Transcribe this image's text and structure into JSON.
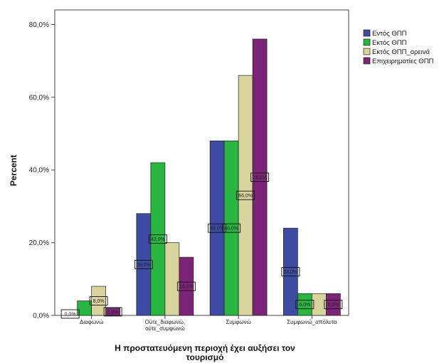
{
  "chart_data": {
    "type": "bar",
    "ylabel": "Percent",
    "xlabel_lines": [
      "Η προστατευόμενη περιοχή έχει αυξήσει τον",
      "τουρισμό"
    ],
    "ylim": [
      0,
      84
    ],
    "yticks": [
      "0,0%",
      "20,0%",
      "40,0%",
      "60,0%",
      "80,0%"
    ],
    "ytick_values": [
      0,
      20,
      40,
      60,
      80
    ],
    "categories": [
      [
        "Διαφωνώ"
      ],
      [
        "Ούτε_διαφωνώ,",
        "ούτε_συμφωνώ"
      ],
      [
        "Συμφωνώ"
      ],
      [
        "Συμφωνώ_απόλυτα"
      ]
    ],
    "series": [
      {
        "name": "Εντός ΘΠΠ",
        "color": "#3d4ba2",
        "values": [
          0,
          28,
          48,
          24
        ],
        "labels": [
          "0,0%",
          "28,0%",
          "48,0%",
          "24,0%"
        ]
      },
      {
        "name": "Εκτός ΘΠΠ",
        "color": "#29b541",
        "values": [
          4,
          42,
          48,
          6
        ],
        "labels": [
          "",
          "42,0%",
          "48,0%",
          "6,0%"
        ]
      },
      {
        "name": "Εκτός ΘΠΠ_ορεινά",
        "color": "#d9d49e",
        "values": [
          8,
          20,
          66,
          6
        ],
        "labels": [
          "8,0%",
          "",
          "66,0%",
          ""
        ]
      },
      {
        "name": "Επιχειρηματίες ΘΠΠ",
        "color": "#7b2478",
        "values": [
          2,
          16,
          76,
          6
        ],
        "labels": [
          "2,0%",
          "16,0%",
          "76,0%",
          "6,0%"
        ]
      }
    ],
    "grid": false,
    "legend": "top-right"
  }
}
